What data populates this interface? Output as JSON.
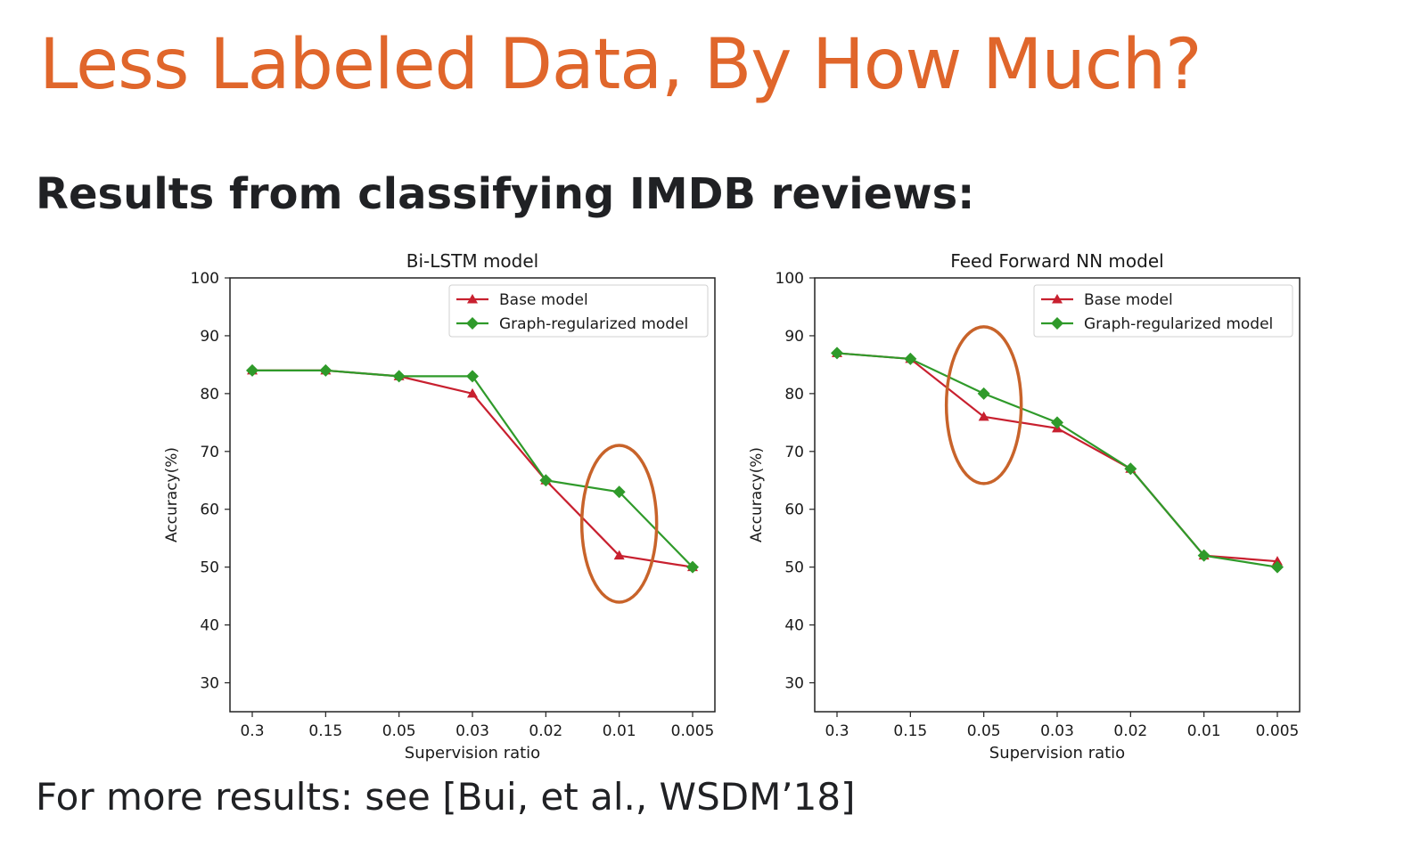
{
  "slide": {
    "title": "Less Labeled Data, By How Much?",
    "subtitle": "Results from classifying IMDB reviews:",
    "footer": "For more results: see [Bui, et al., WSDM’18]"
  },
  "colors": {
    "title": "#e0662b",
    "base_model": "#c8202f",
    "graph_model": "#2f9a2a",
    "highlight": "#c8632a"
  },
  "chart_data": [
    {
      "type": "line",
      "title": "Bi-LSTM model",
      "xlabel": "Supervision ratio",
      "ylabel": "Accuracy(%)",
      "categories": [
        "0.3",
        "0.15",
        "0.05",
        "0.03",
        "0.02",
        "0.01",
        "0.005"
      ],
      "ylim": [
        25,
        100
      ],
      "yticks": [
        30,
        40,
        50,
        60,
        70,
        80,
        90,
        100
      ],
      "legend": "top-right",
      "grid": false,
      "series": [
        {
          "name": "Base model",
          "marker": "triangle",
          "values": [
            84,
            84,
            83,
            80,
            65,
            52,
            50
          ]
        },
        {
          "name": "Graph-regularized model",
          "marker": "diamond",
          "values": [
            84,
            84,
            83,
            83,
            65,
            63,
            50
          ]
        }
      ],
      "highlight": {
        "category": "0.01",
        "shape": "ellipse"
      }
    },
    {
      "type": "line",
      "title": "Feed Forward NN model",
      "xlabel": "Supervision ratio",
      "ylabel": "Accuracy(%)",
      "categories": [
        "0.3",
        "0.15",
        "0.05",
        "0.03",
        "0.02",
        "0.01",
        "0.005"
      ],
      "ylim": [
        25,
        100
      ],
      "yticks": [
        30,
        40,
        50,
        60,
        70,
        80,
        90,
        100
      ],
      "legend": "top-right",
      "grid": false,
      "series": [
        {
          "name": "Base model",
          "marker": "triangle",
          "values": [
            87,
            86,
            76,
            74,
            67,
            52,
            51
          ]
        },
        {
          "name": "Graph-regularized model",
          "marker": "diamond",
          "values": [
            87,
            86,
            80,
            75,
            67,
            52,
            50
          ]
        }
      ],
      "highlight": {
        "category": "0.05",
        "shape": "ellipse"
      }
    }
  ]
}
